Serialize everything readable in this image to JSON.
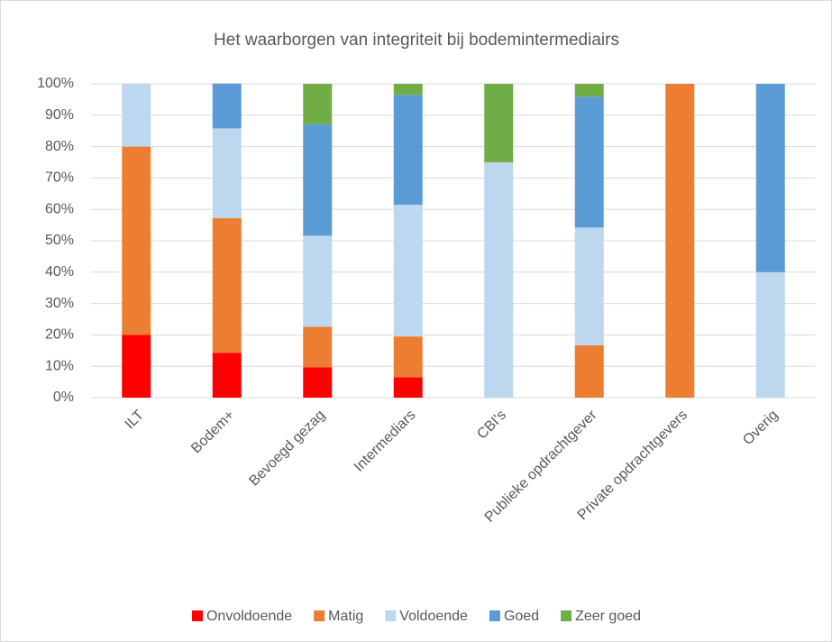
{
  "chart_data": {
    "type": "stacked_bar",
    "title": "Het waarborgen van integriteit bij bodemintermediairs",
    "categories": [
      "ILT",
      "Bodem+",
      "Bevoegd gezag",
      "Intermediars",
      "CBI's",
      "Publieke opdrachtgever",
      "Private opdrachtgevers",
      "Overig"
    ],
    "series": [
      {
        "name": "Onvoldoende",
        "color": "#ff0000",
        "values": [
          20,
          14.3,
          9.7,
          6.5,
          0,
          0,
          0,
          0
        ]
      },
      {
        "name": "Matig",
        "color": "#ed7d31",
        "values": [
          60,
          42.9,
          12.9,
          13,
          0,
          16.7,
          100,
          0
        ]
      },
      {
        "name": "Voldoende",
        "color": "#bdd7ee",
        "values": [
          20,
          28.6,
          29,
          42,
          75,
          37.5,
          0,
          40
        ]
      },
      {
        "name": "Goed",
        "color": "#5b9bd5",
        "values": [
          0,
          14.3,
          35.5,
          35,
          0,
          41.7,
          0,
          60
        ]
      },
      {
        "name": "Zeer goed",
        "color": "#70ad47",
        "values": [
          0,
          0,
          12.9,
          3.5,
          25,
          4.1,
          0,
          0
        ]
      }
    ],
    "ylim": [
      0,
      100
    ],
    "yticks": [
      {
        "value": 0,
        "label": "0%"
      },
      {
        "value": 10,
        "label": "10%"
      },
      {
        "value": 20,
        "label": "20%"
      },
      {
        "value": 30,
        "label": "30%"
      },
      {
        "value": 40,
        "label": "40%"
      },
      {
        "value": 50,
        "label": "50%"
      },
      {
        "value": 60,
        "label": "60%"
      },
      {
        "value": 70,
        "label": "70%"
      },
      {
        "value": 80,
        "label": "80%"
      },
      {
        "value": 90,
        "label": "90%"
      },
      {
        "value": 100,
        "label": "100%"
      }
    ],
    "grid": true,
    "legend": "bottom"
  }
}
